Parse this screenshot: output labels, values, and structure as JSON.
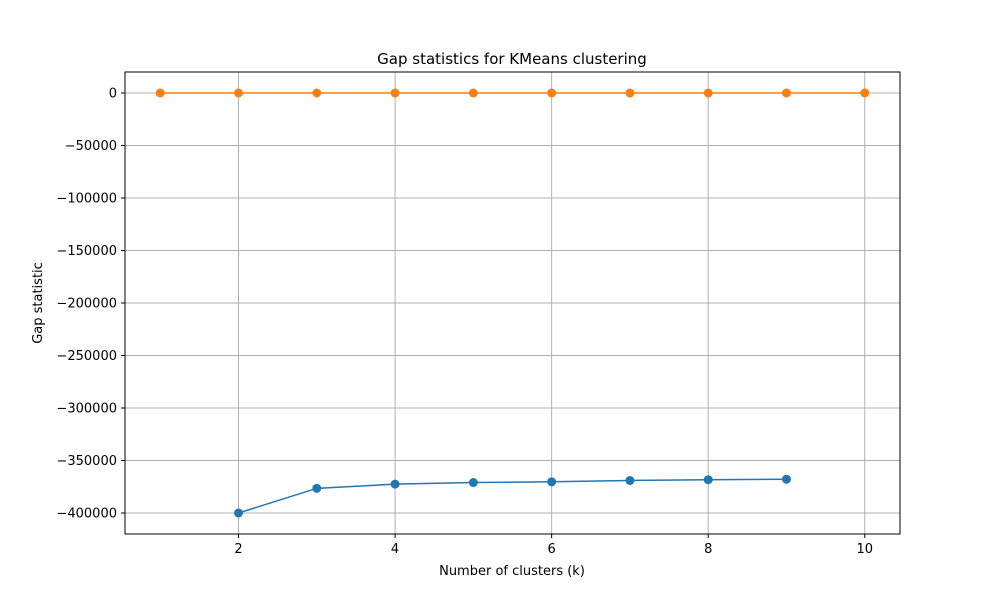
{
  "chart_data": {
    "type": "line",
    "title": "Gap statistics for KMeans clustering",
    "xlabel": "Number of clusters (k)",
    "ylabel": "Gap statistic",
    "xlim": [
      0.55,
      10.45
    ],
    "ylim": [
      -420000,
      20000
    ],
    "xticks": [
      2,
      4,
      6,
      8,
      10
    ],
    "yticks": [
      0,
      -50000,
      -100000,
      -150000,
      -200000,
      -250000,
      -300000,
      -350000,
      -400000
    ],
    "ytick_labels": [
      "0",
      "−50000",
      "−100000",
      "−150000",
      "−200000",
      "−250000",
      "−300000",
      "−350000",
      "−400000"
    ],
    "grid": true,
    "series": [
      {
        "color": "#1f77b4",
        "x": [
          2,
          3,
          4,
          5,
          6,
          7,
          8,
          9
        ],
        "values": [
          -400000,
          -376500,
          -372500,
          -371000,
          -370300,
          -369000,
          -368300,
          -367800
        ]
      },
      {
        "color": "#ff7f0e",
        "x": [
          1,
          2,
          3,
          4,
          5,
          6,
          7,
          8,
          9,
          10
        ],
        "values": [
          0,
          0,
          0,
          0,
          0,
          0,
          0,
          0,
          0,
          0
        ]
      }
    ]
  }
}
